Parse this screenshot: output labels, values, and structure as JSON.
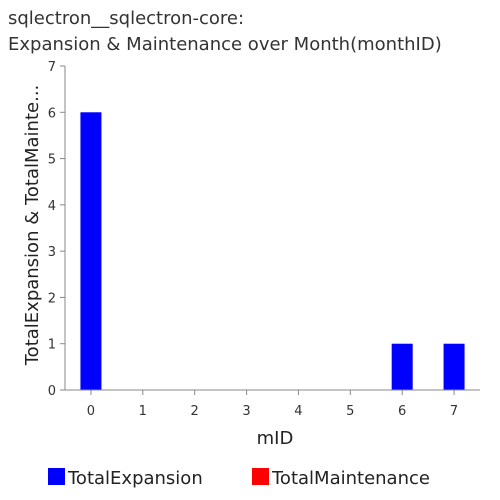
{
  "chart_data": {
    "type": "bar",
    "title_lines": [
      "sqlectron__sqlectron-core:",
      "Expansion & Maintenance over Month(monthID)"
    ],
    "xlabel": "mID",
    "ylabel": "TotalExpansion & TotalMainte...",
    "categories": [
      "0",
      "1",
      "2",
      "3",
      "4",
      "5",
      "6",
      "7"
    ],
    "yticks": [
      "0",
      "1",
      "2",
      "3",
      "4",
      "5",
      "6",
      "7"
    ],
    "ylim": [
      0,
      7
    ],
    "grid": false,
    "legend_position": "bottom",
    "series": [
      {
        "name": "TotalExpansion",
        "color": "#0000ff",
        "values": [
          6,
          0,
          0,
          0,
          0,
          0,
          1,
          1
        ]
      },
      {
        "name": "TotalMaintenance",
        "color": "#ff0000",
        "values": [
          0,
          0,
          0,
          0,
          0,
          0,
          0,
          0
        ]
      }
    ]
  }
}
